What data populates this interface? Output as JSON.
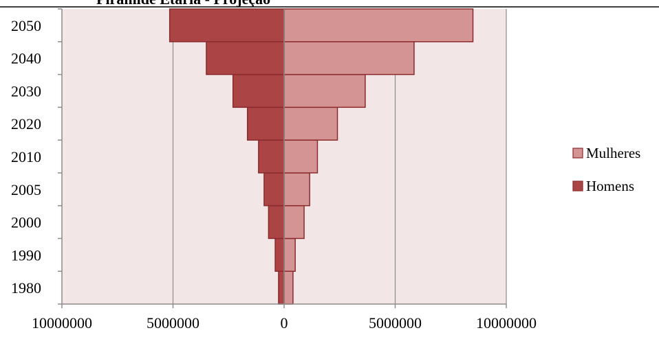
{
  "chart_data": {
    "type": "bar",
    "orientation": "horizontal",
    "subtype": "population-pyramid",
    "title": "Pirâmide Etária - Projeção",
    "categories": [
      "1980",
      "1990",
      "2000",
      "2005",
      "2010",
      "2020",
      "2030",
      "2040",
      "2050"
    ],
    "series": [
      {
        "name": "Mulheres",
        "side": "right",
        "color": "#d59494",
        "values": [
          400000,
          500000,
          900000,
          1150000,
          1500000,
          2400000,
          3650000,
          5850000,
          8500000
        ]
      },
      {
        "name": "Homens",
        "side": "left",
        "color": "#ab4445",
        "values": [
          250000,
          400000,
          700000,
          900000,
          1150000,
          1650000,
          2300000,
          3500000,
          5150000
        ]
      }
    ],
    "x_tick_labels": [
      "10000000",
      "5000000",
      "0",
      "5000000",
      "10000000"
    ],
    "xlim": [
      -10000000,
      10000000
    ],
    "grid": true,
    "legend_position": "right",
    "plot_background": "#f2e6e6",
    "bar_border_color": "#8a2a2c"
  }
}
